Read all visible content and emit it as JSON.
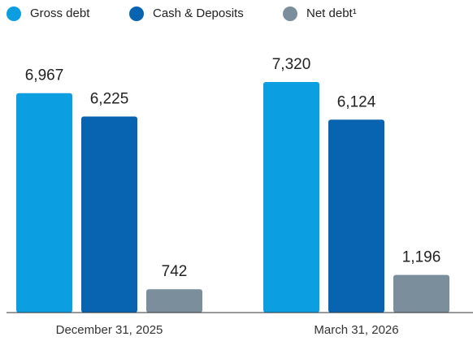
{
  "chart_data": {
    "type": "bar",
    "categories": [
      "December 31, 2025",
      "March 31, 2026"
    ],
    "series": [
      {
        "name": "Gross debt",
        "color": "#0b9fe1",
        "values": [
          6967,
          7320
        ],
        "value_labels": [
          "6,967",
          "7,320"
        ]
      },
      {
        "name": "Cash & Deposits",
        "color": "#0863b0",
        "values": [
          6225,
          6124
        ],
        "value_labels": [
          "6,225",
          "6,124"
        ]
      },
      {
        "name": "Net debt¹",
        "color": "#7b8e9b",
        "values": [
          742,
          1196
        ],
        "value_labels": [
          "742",
          "1,196"
        ]
      }
    ],
    "legend": "top"
  }
}
